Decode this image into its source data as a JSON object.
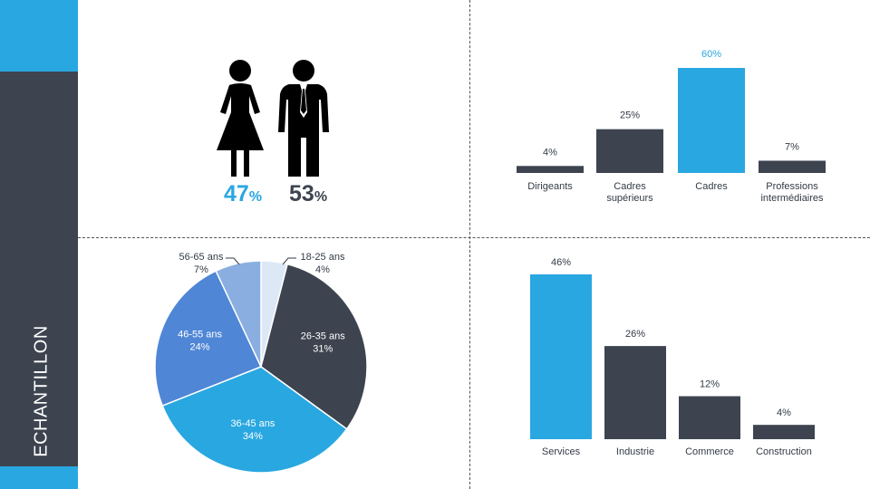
{
  "sidebar": {
    "title": "ECHANTILLON"
  },
  "colors": {
    "accent": "#29a7e1",
    "dark": "#3d4450",
    "pie_light": "#dce8f5",
    "pie_mid": "#4f86d6",
    "pie_lightblue": "#8aaedf"
  },
  "gender": {
    "female": {
      "value": "47",
      "unit": "%",
      "icon": "woman-icon"
    },
    "male": {
      "value": "53",
      "unit": "%",
      "icon": "man-icon"
    }
  },
  "chart_data": [
    {
      "type": "bar",
      "categories": [
        "Dirigeants",
        "Cadres supérieurs",
        "Cadres",
        "Professions intermédiaires"
      ],
      "category_lines": [
        [
          "Dirigeants"
        ],
        [
          "Cadres",
          "supérieurs"
        ],
        [
          "Cadres"
        ],
        [
          "Professions",
          "intermédiaires"
        ]
      ],
      "values": [
        4,
        25,
        60,
        7
      ],
      "value_labels": [
        "4%",
        "25%",
        "60%",
        "7%"
      ],
      "highlight_index": 2,
      "grid": false
    },
    {
      "type": "pie",
      "categories": [
        "18-25 ans",
        "26-35 ans",
        "36-45 ans",
        "46-55 ans",
        "56-65 ans"
      ],
      "values": [
        4,
        31,
        34,
        24,
        7
      ],
      "value_labels": [
        "4%",
        "31%",
        "34%",
        "24%",
        "7%"
      ]
    },
    {
      "type": "bar",
      "categories": [
        "Services",
        "Industrie",
        "Commerce",
        "Construction"
      ],
      "values": [
        46,
        26,
        12,
        4
      ],
      "value_labels": [
        "46%",
        "26%",
        "12%",
        "4%"
      ],
      "highlight_index": 0,
      "grid": false
    }
  ]
}
